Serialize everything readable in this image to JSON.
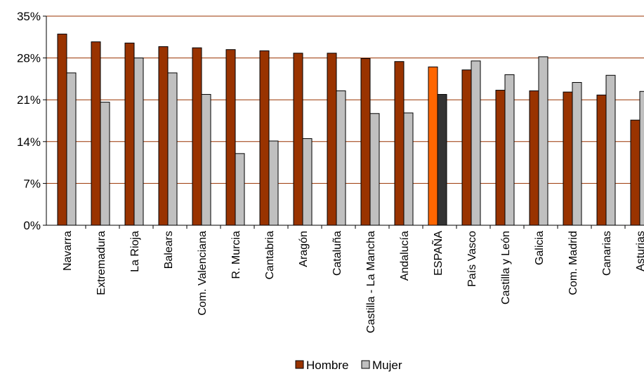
{
  "chart_data": {
    "type": "bar",
    "title": "",
    "xlabel": "",
    "ylabel": "",
    "ylim": [
      0,
      35
    ],
    "yticks": [
      0,
      7,
      14,
      21,
      28,
      35
    ],
    "ytick_labels": [
      "0%",
      "7%",
      "14%",
      "21%",
      "28%",
      "35%"
    ],
    "grid": true,
    "legend_position": "bottom-center",
    "categories": [
      "Navarra",
      "Extremadura",
      "La Rioja",
      "Balears",
      "Com. Valenciana",
      "R. Murcia",
      "Cantabria",
      "Aragón",
      "Cataluña",
      "Castilla - La Mancha",
      "Andalucía",
      "ESPAÑA",
      "País Vasco",
      "Castilla y León",
      "Galicia",
      "Com. Madrid",
      "Canarias",
      "Asturias"
    ],
    "series": [
      {
        "name": "Hombre",
        "color": "#993300",
        "values": [
          32.0,
          30.7,
          30.5,
          29.9,
          29.7,
          29.4,
          29.2,
          28.8,
          28.8,
          27.9,
          27.4,
          26.5,
          26.0,
          22.6,
          22.5,
          22.3,
          21.8,
          17.6
        ]
      },
      {
        "name": "Mujer",
        "color": "#C0C0C0",
        "values": [
          25.5,
          20.6,
          28.0,
          25.5,
          21.9,
          12.0,
          14.1,
          14.5,
          22.5,
          18.7,
          18.8,
          21.9,
          27.5,
          25.2,
          28.2,
          23.9,
          25.1,
          22.4
        ]
      }
    ],
    "highlight": {
      "category": "ESPAÑA",
      "colors": [
        "#FF6600",
        "#333333"
      ]
    }
  }
}
